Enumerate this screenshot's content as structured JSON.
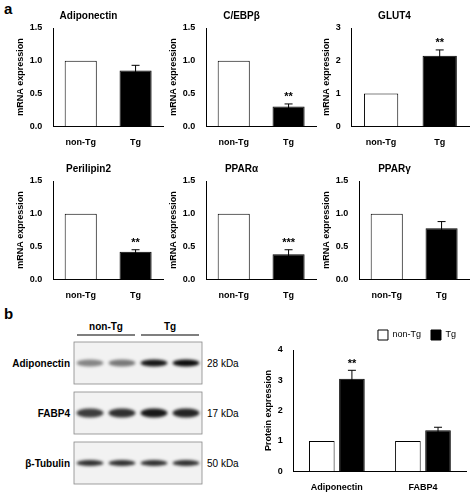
{
  "panel_labels": [
    "a",
    "b"
  ],
  "chart_data": [
    {
      "type": "bar",
      "title": "Adiponectin",
      "categories": [
        "non-Tg",
        "Tg"
      ],
      "values": [
        1,
        0.85
      ],
      "errors": [
        null,
        0.08
      ],
      "significance": [
        null,
        null
      ],
      "colors": [
        "#ffffff",
        "#000000"
      ],
      "ylabel": "mRNA expression",
      "ylim": [
        0,
        1.5
      ],
      "yticks": [
        {
          "value": 0,
          "label": "0.0"
        },
        {
          "value": 0.5,
          "label": "0.5"
        },
        {
          "value": 1,
          "label": "1.0"
        },
        {
          "value": 1.5,
          "label": "1.5"
        }
      ],
      "grid": false
    },
    {
      "type": "bar",
      "title": "C/EBPβ",
      "categories": [
        "non-Tg",
        "Tg"
      ],
      "values": [
        1,
        0.3
      ],
      "errors": [
        null,
        0.04
      ],
      "significance": [
        null,
        "**"
      ],
      "colors": [
        "#ffffff",
        "#000000"
      ],
      "ylabel": "mRNA expression",
      "ylim": [
        0,
        1.5
      ],
      "yticks": [
        {
          "value": 0,
          "label": "0.0"
        },
        {
          "value": 0.5,
          "label": "0.5"
        },
        {
          "value": 1,
          "label": "1.0"
        },
        {
          "value": 1.5,
          "label": "1.5"
        }
      ],
      "grid": false
    },
    {
      "type": "bar",
      "title": "GLUT4",
      "categories": [
        "non-Tg",
        "Tg"
      ],
      "values": [
        1,
        2.15
      ],
      "errors": [
        null,
        0.18
      ],
      "significance": [
        null,
        "**"
      ],
      "colors": [
        "#ffffff",
        "#000000"
      ],
      "ylabel": "mRNA expression",
      "ylim": [
        0,
        3
      ],
      "yticks": [
        0,
        1,
        2,
        3
      ],
      "grid": false
    },
    {
      "type": "bar",
      "title": "Perilipin2",
      "categories": [
        "non-Tg",
        "Tg"
      ],
      "values": [
        1,
        0.42
      ],
      "errors": [
        null,
        0.03
      ],
      "significance": [
        null,
        "**"
      ],
      "colors": [
        "#ffffff",
        "#000000"
      ],
      "ylabel": "mRNA expression",
      "ylim": [
        0,
        1.5
      ],
      "yticks": [
        {
          "value": 0,
          "label": "0.0"
        },
        {
          "value": 0.5,
          "label": "0.5"
        },
        {
          "value": 1,
          "label": "1.0"
        },
        {
          "value": 1.5,
          "label": "1.5"
        }
      ],
      "grid": false
    },
    {
      "type": "bar",
      "title": "PPARα",
      "categories": [
        "non-Tg",
        "Tg"
      ],
      "values": [
        1,
        0.38
      ],
      "errors": [
        null,
        0.07
      ],
      "significance": [
        null,
        "***"
      ],
      "colors": [
        "#ffffff",
        "#000000"
      ],
      "ylabel": "mRNA expression",
      "ylim": [
        0,
        1.5
      ],
      "yticks": [
        {
          "value": 0,
          "label": "0.0"
        },
        {
          "value": 0.5,
          "label": "0.5"
        },
        {
          "value": 1,
          "label": "1.0"
        },
        {
          "value": 1.5,
          "label": "1.5"
        }
      ],
      "grid": false
    },
    {
      "type": "bar",
      "title": "PPARγ",
      "categories": [
        "non-Tg",
        "Tg"
      ],
      "values": [
        1,
        0.78
      ],
      "errors": [
        null,
        0.1
      ],
      "significance": [
        null,
        null
      ],
      "colors": [
        "#ffffff",
        "#000000"
      ],
      "ylabel": "mRNA expression",
      "ylim": [
        0,
        1.5
      ],
      "yticks": [
        {
          "value": 0,
          "label": "0.0"
        },
        {
          "value": 0.5,
          "label": "0.5"
        },
        {
          "value": 1,
          "label": "1.0"
        },
        {
          "value": 1.5,
          "label": "1.5"
        }
      ],
      "grid": false
    },
    {
      "type": "bar",
      "categories": [
        "Adiponectin",
        "FABP4"
      ],
      "series": [
        {
          "name": "non-Tg",
          "color": "#ffffff",
          "values": [
            1,
            1
          ],
          "errors": [
            null,
            null
          ],
          "significance": [
            null,
            null
          ]
        },
        {
          "name": "Tg",
          "color": "#000000",
          "values": [
            3.05,
            1.35
          ],
          "errors": [
            0.28,
            0.1
          ],
          "significance": [
            "**",
            null
          ]
        }
      ],
      "ylabel": "Protein expression",
      "ylim": [
        0,
        4
      ],
      "yticks": [
        0,
        1,
        2,
        3,
        4
      ],
      "grid": false,
      "legend": "top-right"
    }
  ],
  "blot": {
    "groups": [
      "non-Tg",
      "Tg"
    ],
    "rows": [
      {
        "label": "Adiponectin",
        "size": "28 kDa"
      },
      {
        "label": "FABP4",
        "size": "17 kDa"
      },
      {
        "label": "β-Tubulin",
        "size": "50 kDa"
      }
    ]
  }
}
